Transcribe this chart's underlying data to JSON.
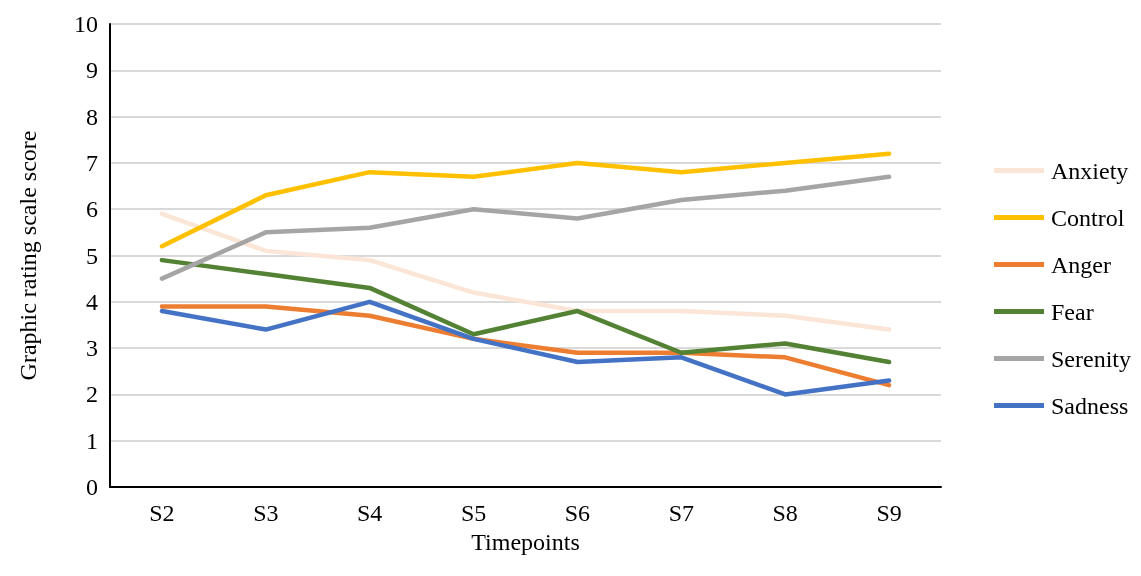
{
  "chart_data": {
    "type": "line",
    "xlabel": "Timepoints",
    "ylabel": "Graphic rating scale score",
    "categories": [
      "S2",
      "S3",
      "S4",
      "S5",
      "S6",
      "S7",
      "S8",
      "S9"
    ],
    "series": [
      {
        "name": "Anxiety",
        "color": "#fbe5d6",
        "values": [
          5.9,
          5.1,
          4.9,
          4.2,
          3.8,
          3.8,
          3.7,
          3.4
        ]
      },
      {
        "name": "Control",
        "color": "#ffc000",
        "values": [
          5.2,
          6.3,
          6.8,
          6.7,
          7.0,
          6.8,
          7.0,
          7.2
        ]
      },
      {
        "name": "Anger",
        "color": "#ed7d31",
        "values": [
          3.9,
          3.9,
          3.7,
          3.2,
          2.9,
          2.9,
          2.8,
          2.2
        ]
      },
      {
        "name": "Fear",
        "color": "#548235",
        "values": [
          4.9,
          4.6,
          4.3,
          3.3,
          3.8,
          2.9,
          3.1,
          2.7
        ]
      },
      {
        "name": "Serenity",
        "color": "#a5a5a5",
        "values": [
          4.5,
          5.5,
          5.6,
          6.0,
          5.8,
          6.2,
          6.4,
          6.7
        ]
      },
      {
        "name": "Sadness",
        "color": "#4472c4",
        "values": [
          3.8,
          3.4,
          4.0,
          3.2,
          2.7,
          2.8,
          2.0,
          2.3
        ]
      }
    ],
    "ylim": [
      0,
      10
    ],
    "yticks": [
      0,
      1,
      2,
      3,
      4,
      5,
      6,
      7,
      8,
      9,
      10
    ],
    "grid": "y",
    "legend": "right",
    "marker": "none",
    "line_style": "solid"
  }
}
